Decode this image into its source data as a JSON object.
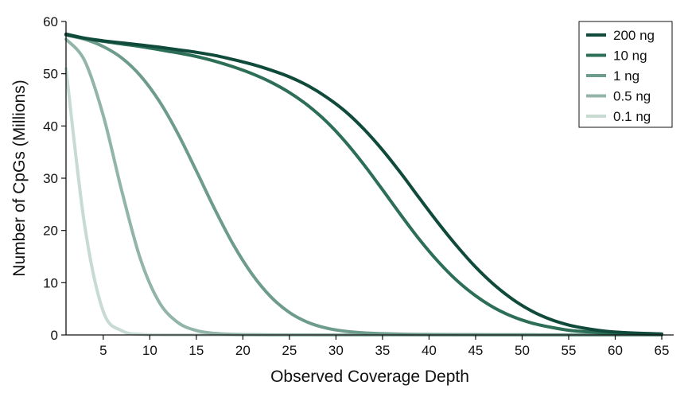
{
  "chart_data": {
    "type": "line",
    "title": "",
    "xlabel": "Observed Coverage Depth",
    "ylabel": "Number of CpGs (Millions)",
    "xlim": [
      1,
      65
    ],
    "ylim": [
      0,
      60
    ],
    "x_ticks": [
      5,
      10,
      15,
      20,
      25,
      30,
      35,
      40,
      45,
      50,
      55,
      60,
      65
    ],
    "x_tick_labels": [
      "5",
      "10",
      "15",
      "20",
      "25",
      "30",
      "35",
      "40",
      "45",
      "50",
      "55",
      "60",
      "65"
    ],
    "y_ticks": [
      0,
      10,
      20,
      30,
      40,
      50,
      60
    ],
    "y_tick_labels": [
      "0",
      "10",
      "20",
      "30",
      "40",
      "50",
      "60"
    ],
    "grid": false,
    "legend_position": "top-right",
    "x": [
      1,
      3,
      5,
      7,
      9,
      11,
      13,
      15,
      17,
      19,
      21,
      23,
      25,
      27,
      29,
      31,
      33,
      35,
      37,
      39,
      41,
      43,
      45,
      47,
      49,
      51,
      53,
      55,
      57,
      59,
      61,
      63,
      65
    ],
    "series": [
      {
        "name": "200 ng",
        "color": "#0f4a3a",
        "values": [
          57.5,
          56.8,
          56.3,
          55.9,
          55.5,
          55.1,
          54.6,
          54.1,
          53.5,
          52.7,
          51.8,
          50.7,
          49.4,
          47.7,
          45.5,
          42.8,
          39.4,
          35.4,
          30.9,
          26.1,
          21.4,
          17.0,
          13.0,
          9.6,
          6.8,
          4.6,
          3.0,
          1.9,
          1.2,
          0.7,
          0.45,
          0.3,
          0.2
        ]
      },
      {
        "name": "10 ng",
        "color": "#2c6e56",
        "values": [
          57.6,
          56.8,
          56.2,
          55.7,
          55.2,
          54.6,
          54.0,
          53.3,
          52.4,
          51.3,
          50.0,
          48.4,
          46.4,
          43.9,
          40.8,
          37.0,
          32.6,
          27.8,
          22.9,
          18.2,
          14.0,
          10.4,
          7.5,
          5.2,
          3.5,
          2.3,
          1.5,
          0.9,
          0.6,
          0.35,
          0.25,
          0.18,
          0.12
        ]
      },
      {
        "name": "1 ng",
        "color": "#6e9c8c",
        "values": [
          57.4,
          56.6,
          55.2,
          53.0,
          49.6,
          44.8,
          38.6,
          31.4,
          24.0,
          17.2,
          11.6,
          7.3,
          4.3,
          2.4,
          1.3,
          0.7,
          0.4,
          0.25,
          0.15,
          0.1,
          0.08,
          0.06,
          0.05,
          0.04,
          0.03,
          0.03,
          0.02,
          0.02,
          0.02,
          0.01,
          0.01,
          0.01,
          0.01
        ]
      },
      {
        "name": "0.5 ng",
        "color": "#93b5a9",
        "values": [
          56.6,
          52.5,
          42.0,
          27.5,
          14.5,
          6.3,
          2.4,
          0.85,
          0.3,
          0.12,
          0.05,
          0.02,
          0.01,
          0.01,
          0.0,
          0.0,
          0.0,
          0.0,
          0.0,
          0.0,
          0.0,
          0.0,
          0.0,
          0.0,
          0.0,
          0.0,
          0.0,
          0.0,
          0.0,
          0.0,
          0.0,
          0.0,
          0.0
        ]
      },
      {
        "name": "0.1 ng",
        "color": "#c7dbd3",
        "values": [
          51.0,
          21.0,
          4.5,
          0.8,
          0.12,
          0.02,
          0.0,
          0.0,
          0.0,
          0.0,
          0.0,
          0.0,
          0.0,
          0.0,
          0.0,
          0.0,
          0.0,
          0.0,
          0.0,
          0.0,
          0.0,
          0.0,
          0.0,
          0.0,
          0.0,
          0.0,
          0.0,
          0.0,
          0.0,
          0.0,
          0.0,
          0.0,
          0.0
        ]
      }
    ]
  }
}
